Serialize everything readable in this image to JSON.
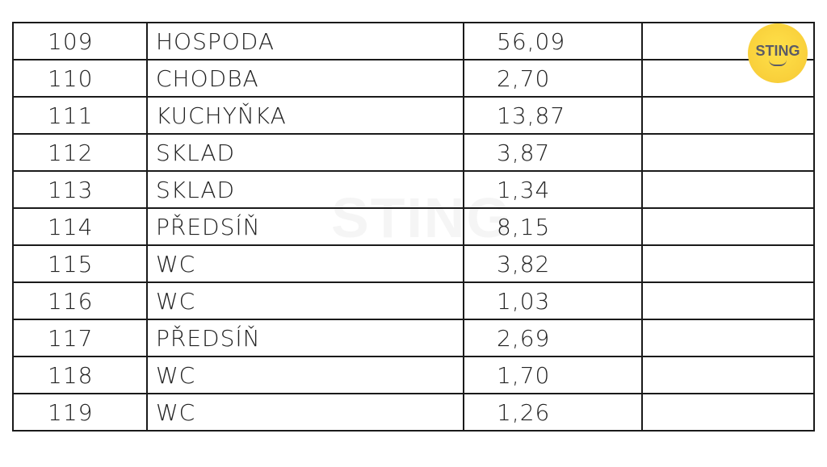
{
  "rows": [
    {
      "no": "109",
      "name": "HOSPODA",
      "area": "56,09"
    },
    {
      "no": "110",
      "name": "CHODBA",
      "area": "2,70"
    },
    {
      "no": "111",
      "name": "KUCHYŇKA",
      "area": "13,87"
    },
    {
      "no": "112",
      "name": "SKLAD",
      "area": "3,87"
    },
    {
      "no": "113",
      "name": "SKLAD",
      "area": "1,34"
    },
    {
      "no": "114",
      "name": "PŘEDSÍŇ",
      "area": "8,15"
    },
    {
      "no": "115",
      "name": "WC",
      "area": "3,82"
    },
    {
      "no": "116",
      "name": "WC",
      "area": "1,03"
    },
    {
      "no": "117",
      "name": "PŘEDSÍŇ",
      "area": "2,69"
    },
    {
      "no": "118",
      "name": "WC",
      "area": "1,70"
    },
    {
      "no": "119",
      "name": "WC",
      "area": "1,26"
    }
  ],
  "logo": {
    "text": "STING",
    "color": "#f6c834"
  },
  "watermark": "STING"
}
